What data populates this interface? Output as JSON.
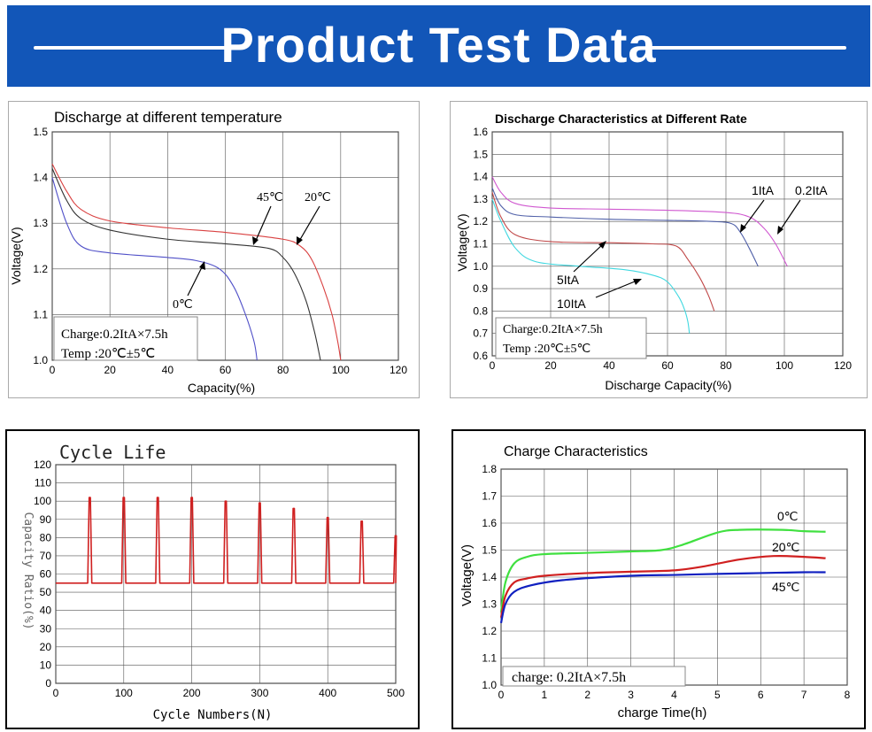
{
  "banner": {
    "title": "Product Test Data",
    "color": "#1256b8"
  },
  "chart_data": [
    {
      "id": "c1",
      "type": "line",
      "title": "Discharge at different temperature",
      "xlabel": "Capacity(%)",
      "ylabel": "Voltage(V)",
      "xlim": [
        0,
        120
      ],
      "ylim": [
        1.0,
        1.5
      ],
      "xticks": [
        "0",
        "20",
        "40",
        "60",
        "80",
        "100",
        "120"
      ],
      "yticks": [
        "1.0",
        "1.1",
        "1.2",
        "1.3",
        "1.4",
        "1.5"
      ],
      "grid": true,
      "series": [
        {
          "name": "20℃",
          "color": "#d94040",
          "points": [
            [
              0,
              1.43
            ],
            [
              5,
              1.37
            ],
            [
              10,
              1.33
            ],
            [
              20,
              1.305
            ],
            [
              40,
              1.29
            ],
            [
              60,
              1.28
            ],
            [
              80,
              1.265
            ],
            [
              86,
              1.25
            ],
            [
              90,
              1.22
            ],
            [
              94,
              1.16
            ],
            [
              97,
              1.1
            ],
            [
              99,
              1.04
            ],
            [
              100,
              1.0
            ]
          ]
        },
        {
          "name": "45℃",
          "color": "#333333",
          "points": [
            [
              0,
              1.42
            ],
            [
              5,
              1.35
            ],
            [
              10,
              1.31
            ],
            [
              20,
              1.285
            ],
            [
              40,
              1.265
            ],
            [
              60,
              1.255
            ],
            [
              75,
              1.245
            ],
            [
              80,
              1.225
            ],
            [
              84,
              1.19
            ],
            [
              88,
              1.13
            ],
            [
              91,
              1.06
            ],
            [
              93,
              1.0
            ]
          ]
        },
        {
          "name": "0℃",
          "color": "#5050c8",
          "points": [
            [
              0,
              1.4
            ],
            [
              5,
              1.3
            ],
            [
              10,
              1.25
            ],
            [
              20,
              1.235
            ],
            [
              40,
              1.225
            ],
            [
              50,
              1.218
            ],
            [
              58,
              1.2
            ],
            [
              63,
              1.16
            ],
            [
              67,
              1.1
            ],
            [
              70,
              1.04
            ],
            [
              71,
              1.0
            ]
          ]
        }
      ],
      "annotations": [
        "45℃",
        "20℃",
        "0℃"
      ],
      "notes": [
        "Charge:0.2ItA×7.5h",
        "Temp  :20℃±5℃"
      ]
    },
    {
      "id": "c2",
      "type": "line",
      "title": "Discharge Characteristics at Different Rate",
      "xlabel": "Discharge Capacity(%)",
      "ylabel": "Voltage(V)",
      "xlim": [
        0,
        120
      ],
      "ylim": [
        0.6,
        1.6
      ],
      "xticks": [
        "0",
        "20",
        "40",
        "60",
        "80",
        "100",
        "120"
      ],
      "yticks": [
        "0.6",
        "0.7",
        "0.8",
        "0.9",
        "1.0",
        "1.1",
        "1.2",
        "1.3",
        "1.4",
        "1.5",
        "1.6"
      ],
      "grid": true,
      "series": [
        {
          "name": "0.2ItA",
          "color": "#d058d0",
          "points": [
            [
              0,
              1.4
            ],
            [
              3,
              1.33
            ],
            [
              8,
              1.28
            ],
            [
              20,
              1.26
            ],
            [
              40,
              1.255
            ],
            [
              60,
              1.25
            ],
            [
              80,
              1.24
            ],
            [
              88,
              1.22
            ],
            [
              93,
              1.17
            ],
            [
              97,
              1.1
            ],
            [
              101,
              1.0
            ]
          ]
        },
        {
          "name": "1ItA",
          "color": "#5060a8",
          "points": [
            [
              0,
              1.35
            ],
            [
              3,
              1.27
            ],
            [
              8,
              1.23
            ],
            [
              20,
              1.22
            ],
            [
              40,
              1.21
            ],
            [
              60,
              1.205
            ],
            [
              75,
              1.2
            ],
            [
              82,
              1.19
            ],
            [
              85,
              1.15
            ],
            [
              88,
              1.08
            ],
            [
              91,
              1.0
            ]
          ]
        },
        {
          "name": "5ItA",
          "color": "#c04848",
          "points": [
            [
              0,
              1.33
            ],
            [
              3,
              1.22
            ],
            [
              8,
              1.14
            ],
            [
              20,
              1.11
            ],
            [
              40,
              1.105
            ],
            [
              55,
              1.1
            ],
            [
              63,
              1.09
            ],
            [
              67,
              1.03
            ],
            [
              71,
              0.95
            ],
            [
              74,
              0.87
            ],
            [
              76,
              0.8
            ]
          ]
        },
        {
          "name": "10ItA",
          "color": "#40d8e0",
          "points": [
            [
              0,
              1.3
            ],
            [
              3,
              1.2
            ],
            [
              8,
              1.08
            ],
            [
              15,
              1.02
            ],
            [
              30,
              1.0
            ],
            [
              45,
              0.985
            ],
            [
              55,
              0.96
            ],
            [
              60,
              0.93
            ],
            [
              64,
              0.86
            ],
            [
              66,
              0.8
            ],
            [
              67,
              0.75
            ],
            [
              67.5,
              0.7
            ]
          ]
        }
      ],
      "annotations": [
        "1ItA",
        "0.2ItA",
        "5ItA",
        "10ItA"
      ],
      "notes": [
        "Charge:0.2ItA×7.5h",
        "Temp  :20℃±5℃"
      ]
    },
    {
      "id": "c3",
      "type": "line",
      "title": "Cycle Life",
      "xlabel": "Cycle Numbers(N)",
      "ylabel": "Capacity Ratio(%)",
      "xlim": [
        0,
        500
      ],
      "ylim": [
        0,
        120
      ],
      "xticks": [
        "0",
        "100",
        "200",
        "300",
        "400",
        "500"
      ],
      "yticks": [
        "0",
        "10",
        "20",
        "30",
        "40",
        "50",
        "60",
        "70",
        "80",
        "90",
        "100",
        "110",
        "120"
      ],
      "grid": true,
      "series": [
        {
          "name": "Capacity Ratio",
          "color": "#d02020",
          "baseline": 55,
          "peaks": [
            [
              50,
              102
            ],
            [
              100,
              102
            ],
            [
              150,
              102
            ],
            [
              200,
              102
            ],
            [
              250,
              100
            ],
            [
              300,
              99
            ],
            [
              350,
              96
            ],
            [
              400,
              91
            ],
            [
              450,
              89
            ],
            [
              500,
              81
            ]
          ]
        }
      ]
    },
    {
      "id": "c4",
      "type": "line",
      "title": "Charge Characteristics",
      "xlabel": "charge Time(h)",
      "ylabel": "Voltage(V)",
      "xlim": [
        0,
        8
      ],
      "ylim": [
        1.0,
        1.8
      ],
      "xticks": [
        "0",
        "1",
        "2",
        "3",
        "4",
        "5",
        "6",
        "7",
        "8"
      ],
      "yticks": [
        "1.0",
        "1.1",
        "1.2",
        "1.3",
        "1.4",
        "1.5",
        "1.6",
        "1.7",
        "1.8"
      ],
      "grid": true,
      "series": [
        {
          "name": "0℃",
          "color": "#40e040",
          "points": [
            [
              0,
              1.27
            ],
            [
              0.1,
              1.38
            ],
            [
              0.3,
              1.45
            ],
            [
              0.6,
              1.475
            ],
            [
              1,
              1.485
            ],
            [
              2,
              1.49
            ],
            [
              3,
              1.495
            ],
            [
              3.7,
              1.5
            ],
            [
              4.2,
              1.52
            ],
            [
              5,
              1.565
            ],
            [
              5.5,
              1.575
            ],
            [
              6.5,
              1.575
            ],
            [
              7,
              1.57
            ],
            [
              7.5,
              1.568
            ]
          ]
        },
        {
          "name": "20℃",
          "color": "#d02020",
          "points": [
            [
              0,
              1.25
            ],
            [
              0.1,
              1.33
            ],
            [
              0.3,
              1.38
            ],
            [
              0.6,
              1.395
            ],
            [
              1,
              1.405
            ],
            [
              2,
              1.415
            ],
            [
              3,
              1.42
            ],
            [
              4,
              1.425
            ],
            [
              4.7,
              1.44
            ],
            [
              5.5,
              1.465
            ],
            [
              6.3,
              1.478
            ],
            [
              7,
              1.475
            ],
            [
              7.5,
              1.47
            ]
          ]
        },
        {
          "name": "45℃",
          "color": "#1020c0",
          "points": [
            [
              0,
              1.23
            ],
            [
              0.1,
              1.3
            ],
            [
              0.3,
              1.345
            ],
            [
              0.7,
              1.37
            ],
            [
              1.5,
              1.39
            ],
            [
              3,
              1.405
            ],
            [
              4,
              1.408
            ],
            [
              5,
              1.412
            ],
            [
              6,
              1.415
            ],
            [
              7,
              1.418
            ],
            [
              7.5,
              1.418
            ]
          ]
        }
      ],
      "annotations": [
        "0℃",
        "20℃",
        "45℃"
      ],
      "notes": [
        "charge: 0.2ItA×7.5h"
      ]
    }
  ]
}
